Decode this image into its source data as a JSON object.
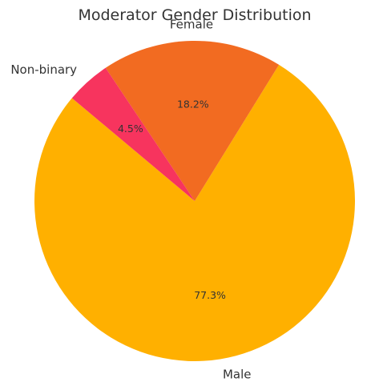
{
  "chart_data": {
    "type": "pie",
    "title": "Moderator Gender Distribution",
    "start_angle_deg": 140,
    "direction": "counterclockwise",
    "slices": [
      {
        "label": "Male",
        "value": 77.3,
        "pct_label": "77.3%",
        "color": "#FFB000"
      },
      {
        "label": "Female",
        "value": 18.2,
        "pct_label": "18.2%",
        "color": "#F26B21"
      },
      {
        "label": "Non-binary",
        "value": 4.5,
        "pct_label": "4.5%",
        "color": "#F7345E"
      }
    ]
  }
}
